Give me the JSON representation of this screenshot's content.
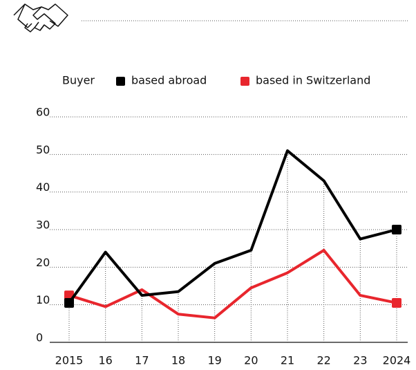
{
  "chart_data": {
    "type": "line",
    "legend_title": "Buyer",
    "categories": [
      "2015",
      "16",
      "17",
      "18",
      "19",
      "20",
      "21",
      "22",
      "23",
      "2024"
    ],
    "series": [
      {
        "name": "based abroad",
        "color": "#000000",
        "values": [
          10.5,
          24,
          12.5,
          13.5,
          21,
          24.5,
          51,
          43,
          27.5,
          30
        ]
      },
      {
        "name": "based in Switzerland",
        "color": "#e8262d",
        "values": [
          12.5,
          9.5,
          14,
          7.5,
          6.5,
          14.5,
          18.5,
          24.5,
          12.5,
          10.5
        ]
      }
    ],
    "ylim": [
      0,
      60
    ],
    "yticks": [
      0,
      10,
      20,
      30,
      40,
      50,
      60
    ],
    "grid": true
  }
}
